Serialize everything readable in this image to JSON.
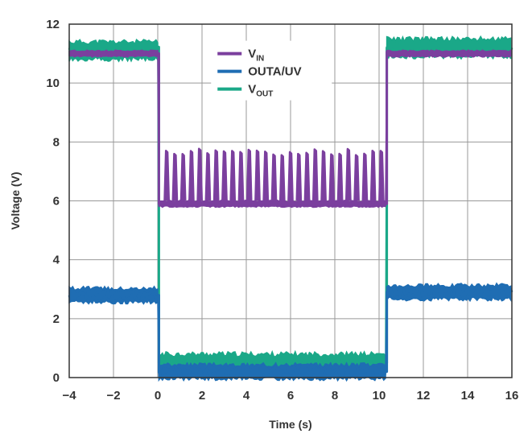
{
  "chart_data": {
    "type": "line",
    "title": "",
    "xlabel": "Time (s)",
    "ylabel": "Voltage (V)",
    "xlim": [
      -4,
      16
    ],
    "ylim": [
      0,
      12
    ],
    "xticks": [
      -4,
      -2,
      0,
      2,
      4,
      6,
      8,
      10,
      12,
      14,
      16
    ],
    "yticks": [
      0,
      2,
      4,
      6,
      8,
      10,
      12
    ],
    "xtick_labels": [
      "−4",
      "−2",
      "0",
      "2",
      "4",
      "6",
      "8",
      "10",
      "12",
      "14",
      "16"
    ],
    "ytick_labels": [
      "0",
      "2",
      "4",
      "6",
      "8",
      "10",
      "12"
    ],
    "grid": true,
    "legend_position": "top-center",
    "series": [
      {
        "name": "VIN",
        "legend_main": "V",
        "legend_sub": "IN",
        "color": "#7b3f9e",
        "description": "About 11 V before t=0, falls to about 6 V with periodic spikes to about 7.8 V until t=10.4 s, then returns to about 11 V",
        "points": [
          [
            -4,
            11.0
          ],
          [
            0.05,
            11.0
          ],
          [
            0.05,
            5.9
          ],
          [
            10.35,
            5.9
          ],
          [
            10.35,
            11.0
          ],
          [
            16,
            11.0
          ]
        ],
        "spikes": {
          "start": 0.4,
          "end": 10.1,
          "count": 27,
          "peak": 7.8,
          "base": 6.0
        }
      },
      {
        "name": "OUTA/UV",
        "legend_main": "OUTA/UV",
        "legend_sub": "",
        "color": "#1f6db3",
        "description": "About 2.8 V before t=0, drops to about 0.2 V until t=10.4 s, then returns to about 2.8 V",
        "points": [
          [
            -4,
            2.8
          ],
          [
            0.05,
            2.8
          ],
          [
            0.05,
            0.2
          ],
          [
            10.35,
            0.2
          ],
          [
            10.35,
            2.9
          ],
          [
            16,
            2.9
          ]
        ]
      },
      {
        "name": "VOUT",
        "legend_main": "V",
        "legend_sub": "OUT",
        "color": "#1aa888",
        "description": "About 11 V before t=0, drops to about 0.5 V until t=10.4 s, then returns to about 11.1 V",
        "points": [
          [
            -4,
            11.1
          ],
          [
            0.05,
            11.1
          ],
          [
            0.05,
            0.5
          ],
          [
            10.35,
            0.5
          ],
          [
            10.35,
            11.2
          ],
          [
            16,
            11.2
          ]
        ]
      }
    ]
  }
}
